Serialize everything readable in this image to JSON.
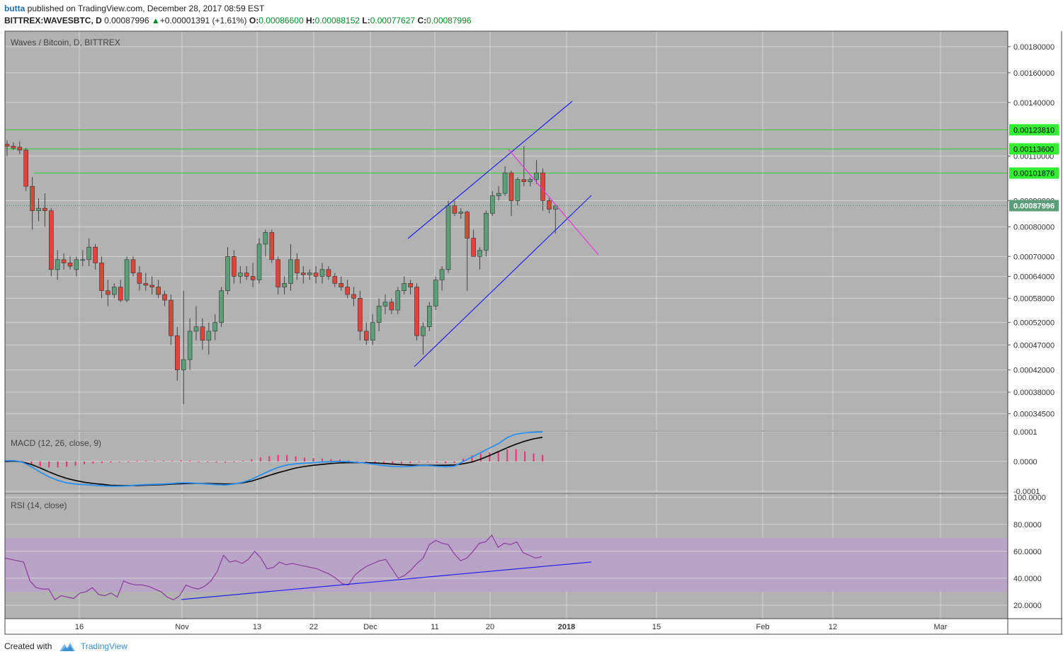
{
  "header": {
    "author": "butta",
    "published_text": "published on TradingView.com, December 28, 2017 08:59 EST",
    "symbol": "BITTREX:WAVESBTC, D",
    "last": "0.00087996",
    "change": "+0.00001391 (+1.61%)",
    "o_label": "O:",
    "o_value": "0.00086600",
    "h_label": "H:",
    "h_value": "0.00088152",
    "l_label": "L:",
    "l_value": "0.00077627",
    "c_label": "C:",
    "c_value": "0.00087996"
  },
  "footer": {
    "created_with": "Created with",
    "brand": "TradingView"
  },
  "colors": {
    "pane_bg": "#b2b2b2",
    "grid": "#d4d4d4",
    "up": "#5b9e78",
    "down": "#d8473a",
    "hline": "#2ecc2e",
    "trend": "#2222ee",
    "pink": "#ee33dd",
    "macd": "#2b8ff0",
    "signal": "#000000",
    "hist": "#e8327a",
    "rsi": "#8a3a9a",
    "rsi_band": "#b9a4c8"
  },
  "chart_data": [
    {
      "type": "candlestick",
      "title": "Waves / Bitcoin, D, BITTREX",
      "scale": "log",
      "ylim": [
        0.00032,
        0.00193
      ],
      "yticks": [
        "0.00180000",
        "0.00160000",
        "0.00140000",
        "0.00110000",
        "0.00090000",
        "0.00080000",
        "0.00070000",
        "0.00064000",
        "0.00058000",
        "0.00052000",
        "0.00047000",
        "0.00042000",
        "0.00038000",
        "0.00034500"
      ],
      "xticks": [
        "16",
        "Nov",
        "13",
        "22",
        "Dec",
        "11",
        "20",
        "2018",
        "15",
        "Feb",
        "12",
        "Mar"
      ],
      "horizontal_levels": [
        {
          "label": "0.00123810",
          "value": 0.0012381
        },
        {
          "label": "0.00113600",
          "value": 0.001136
        },
        {
          "label": "0.00101876",
          "value": 0.00101876
        }
      ],
      "last_price_label": "0.00087996",
      "candles": [
        {
          "o": 0.00116,
          "h": 0.00118,
          "l": 0.0011,
          "c": 0.00115
        },
        {
          "o": 0.00115,
          "h": 0.00117,
          "l": 0.00113,
          "c": 0.00114
        },
        {
          "o": 0.001145,
          "h": 0.001175,
          "l": 0.00111,
          "c": 0.00113
        },
        {
          "o": 0.00113,
          "h": 0.00114,
          "l": 0.00094,
          "c": 0.00096
        },
        {
          "o": 0.00096,
          "h": 0.001,
          "l": 0.00079,
          "c": 0.00086
        },
        {
          "o": 0.00086,
          "h": 0.00091,
          "l": 0.00082,
          "c": 0.00087
        },
        {
          "o": 0.00087,
          "h": 0.00093,
          "l": 0.0008,
          "c": 0.00086
        },
        {
          "o": 0.00086,
          "h": 0.00087,
          "l": 0.00064,
          "c": 0.00066
        },
        {
          "o": 0.00066,
          "h": 0.00072,
          "l": 0.00063,
          "c": 0.00069
        },
        {
          "o": 0.00069,
          "h": 0.00071,
          "l": 0.00066,
          "c": 0.00068
        },
        {
          "o": 0.00068,
          "h": 0.0007,
          "l": 0.00066,
          "c": 0.00067
        },
        {
          "o": 0.00066,
          "h": 0.0007,
          "l": 0.00064,
          "c": 0.00069
        },
        {
          "o": 0.00069,
          "h": 0.00072,
          "l": 0.00067,
          "c": 0.00069
        },
        {
          "o": 0.00069,
          "h": 0.00076,
          "l": 0.00067,
          "c": 0.00073
        },
        {
          "o": 0.00073,
          "h": 0.00074,
          "l": 0.00066,
          "c": 0.00068
        },
        {
          "o": 0.00068,
          "h": 0.0007,
          "l": 0.00058,
          "c": 0.0006
        },
        {
          "o": 0.0006,
          "h": 0.00063,
          "l": 0.00056,
          "c": 0.00059
        },
        {
          "o": 0.00059,
          "h": 0.00062,
          "l": 0.00058,
          "c": 0.00061
        },
        {
          "o": 0.00061,
          "h": 0.00063,
          "l": 0.00057,
          "c": 0.000575
        },
        {
          "o": 0.000575,
          "h": 0.0007,
          "l": 0.00057,
          "c": 0.00069
        },
        {
          "o": 0.00069,
          "h": 0.0007,
          "l": 0.00064,
          "c": 0.00065
        },
        {
          "o": 0.00065,
          "h": 0.00067,
          "l": 0.0006,
          "c": 0.00062
        },
        {
          "o": 0.00062,
          "h": 0.00065,
          "l": 0.0006,
          "c": 0.000615
        },
        {
          "o": 0.000615,
          "h": 0.00064,
          "l": 0.00059,
          "c": 0.00061
        },
        {
          "o": 0.00061,
          "h": 0.00063,
          "l": 0.00058,
          "c": 0.00059
        },
        {
          "o": 0.00059,
          "h": 0.0006,
          "l": 0.00056,
          "c": 0.000575
        },
        {
          "o": 0.000575,
          "h": 0.00059,
          "l": 0.00047,
          "c": 0.00049
        },
        {
          "o": 0.00049,
          "h": 0.00051,
          "l": 0.0004,
          "c": 0.00042
        },
        {
          "o": 0.00042,
          "h": 0.0006,
          "l": 0.00036,
          "c": 0.00044
        },
        {
          "o": 0.00044,
          "h": 0.00053,
          "l": 0.00042,
          "c": 0.0005
        },
        {
          "o": 0.0005,
          "h": 0.00056,
          "l": 0.00048,
          "c": 0.00051
        },
        {
          "o": 0.00051,
          "h": 0.00053,
          "l": 0.00046,
          "c": 0.00048
        },
        {
          "o": 0.00048,
          "h": 0.00052,
          "l": 0.00045,
          "c": 0.0005
        },
        {
          "o": 0.0005,
          "h": 0.00054,
          "l": 0.00048,
          "c": 0.00052
        },
        {
          "o": 0.00052,
          "h": 0.00061,
          "l": 0.00051,
          "c": 0.0006
        },
        {
          "o": 0.0006,
          "h": 0.00073,
          "l": 0.00059,
          "c": 0.0007
        },
        {
          "o": 0.0007,
          "h": 0.00072,
          "l": 0.00062,
          "c": 0.00064
        },
        {
          "o": 0.00064,
          "h": 0.00067,
          "l": 0.00062,
          "c": 0.00065
        },
        {
          "o": 0.00065,
          "h": 0.00067,
          "l": 0.00063,
          "c": 0.00064
        },
        {
          "o": 0.00064,
          "h": 0.00068,
          "l": 0.00061,
          "c": 0.00063
        },
        {
          "o": 0.00063,
          "h": 0.00076,
          "l": 0.00062,
          "c": 0.00074
        },
        {
          "o": 0.00074,
          "h": 0.00079,
          "l": 0.0007,
          "c": 0.00078
        },
        {
          "o": 0.00078,
          "h": 0.00079,
          "l": 0.00068,
          "c": 0.00069
        },
        {
          "o": 0.00069,
          "h": 0.0007,
          "l": 0.00059,
          "c": 0.00061
        },
        {
          "o": 0.00061,
          "h": 0.00064,
          "l": 0.00059,
          "c": 0.00062
        },
        {
          "o": 0.00062,
          "h": 0.00074,
          "l": 0.0006,
          "c": 0.00069
        },
        {
          "o": 0.00069,
          "h": 0.00071,
          "l": 0.00063,
          "c": 0.00065
        },
        {
          "o": 0.00065,
          "h": 0.00067,
          "l": 0.00062,
          "c": 0.000645
        },
        {
          "o": 0.000645,
          "h": 0.00066,
          "l": 0.00063,
          "c": 0.00065
        },
        {
          "o": 0.00065,
          "h": 0.00067,
          "l": 0.00062,
          "c": 0.00064
        },
        {
          "o": 0.00064,
          "h": 0.00068,
          "l": 0.00062,
          "c": 0.00066
        },
        {
          "o": 0.00066,
          "h": 0.00067,
          "l": 0.00063,
          "c": 0.00064
        },
        {
          "o": 0.00064,
          "h": 0.00065,
          "l": 0.00061,
          "c": 0.00062
        },
        {
          "o": 0.00062,
          "h": 0.00064,
          "l": 0.0006,
          "c": 0.00061
        },
        {
          "o": 0.00061,
          "h": 0.00063,
          "l": 0.00058,
          "c": 0.00059
        },
        {
          "o": 0.00059,
          "h": 0.00061,
          "l": 0.00056,
          "c": 0.00058
        },
        {
          "o": 0.00058,
          "h": 0.0006,
          "l": 0.00048,
          "c": 0.0005
        },
        {
          "o": 0.0005,
          "h": 0.00052,
          "l": 0.00047,
          "c": 0.00048
        },
        {
          "o": 0.00048,
          "h": 0.00054,
          "l": 0.00047,
          "c": 0.00052
        },
        {
          "o": 0.00052,
          "h": 0.00058,
          "l": 0.0005,
          "c": 0.00056
        },
        {
          "o": 0.00056,
          "h": 0.00059,
          "l": 0.00054,
          "c": 0.00057
        },
        {
          "o": 0.00057,
          "h": 0.00058,
          "l": 0.00054,
          "c": 0.00055
        },
        {
          "o": 0.00055,
          "h": 0.00061,
          "l": 0.00054,
          "c": 0.0006
        },
        {
          "o": 0.0006,
          "h": 0.00064,
          "l": 0.00059,
          "c": 0.00062
        },
        {
          "o": 0.00062,
          "h": 0.00063,
          "l": 0.00059,
          "c": 0.00061
        },
        {
          "o": 0.00061,
          "h": 0.00062,
          "l": 0.00048,
          "c": 0.00049
        },
        {
          "o": 0.00049,
          "h": 0.00052,
          "l": 0.00045,
          "c": 0.00051
        },
        {
          "o": 0.00051,
          "h": 0.00057,
          "l": 0.0005,
          "c": 0.00056
        },
        {
          "o": 0.00056,
          "h": 0.00064,
          "l": 0.00055,
          "c": 0.00063
        },
        {
          "o": 0.00063,
          "h": 0.00067,
          "l": 0.0006,
          "c": 0.00066
        },
        {
          "o": 0.00066,
          "h": 0.0009,
          "l": 0.00065,
          "c": 0.00088
        },
        {
          "o": 0.00088,
          "h": 0.0009,
          "l": 0.00084,
          "c": 0.00085
        },
        {
          "o": 0.00085,
          "h": 0.00087,
          "l": 0.00083,
          "c": 0.000855
        },
        {
          "o": 0.000855,
          "h": 0.00086,
          "l": 0.0006,
          "c": 0.00076
        },
        {
          "o": 0.00076,
          "h": 0.00079,
          "l": 0.0007,
          "c": 0.0007
        },
        {
          "o": 0.0007,
          "h": 0.00073,
          "l": 0.00066,
          "c": 0.00072
        },
        {
          "o": 0.00072,
          "h": 0.00086,
          "l": 0.0007,
          "c": 0.00085
        },
        {
          "o": 0.00085,
          "h": 0.00094,
          "l": 0.00084,
          "c": 0.00092
        },
        {
          "o": 0.00092,
          "h": 0.00096,
          "l": 0.0009,
          "c": 0.00093
        },
        {
          "o": 0.00093,
          "h": 0.00105,
          "l": 0.00092,
          "c": 0.00102
        },
        {
          "o": 0.00102,
          "h": 0.00103,
          "l": 0.00084,
          "c": 0.0009
        },
        {
          "o": 0.0009,
          "h": 0.001,
          "l": 0.00088,
          "c": 0.00099
        },
        {
          "o": 0.00099,
          "h": 0.00115,
          "l": 0.00096,
          "c": 0.00098
        },
        {
          "o": 0.00098,
          "h": 0.001,
          "l": 0.00096,
          "c": 0.00099
        },
        {
          "o": 0.00099,
          "h": 0.00108,
          "l": 0.00097,
          "c": 0.00102
        },
        {
          "o": 0.00102,
          "h": 0.00104,
          "l": 0.00086,
          "c": 0.0009
        },
        {
          "o": 0.0009,
          "h": 0.00091,
          "l": 0.00085,
          "c": 0.000866
        },
        {
          "o": 0.000866,
          "h": 0.000882,
          "l": 0.000776,
          "c": 0.00088
        }
      ]
    },
    {
      "type": "line",
      "title": "MACD (12, 26, close, 9)",
      "ylim": [
        -0.000105,
        0.000102
      ],
      "yticks": [
        "0.0001",
        "0.0000",
        "-0.0001"
      ],
      "series": [
        {
          "values": [
            2e-06,
            3e-06,
            -3e-06,
            -1.8e-05,
            -3.6e-05,
            -5.2e-05,
            -6.4e-05,
            -7.2e-05,
            -7.6e-05,
            -7.8e-05,
            -8e-05,
            -8.2e-05,
            -8.3e-05,
            -8.3e-05,
            -8.2e-05,
            -7.9e-05,
            -7.8e-05,
            -7.7e-05,
            -7.6e-05,
            -7.4e-05,
            -7.2e-05,
            -7.2e-05,
            -7.4e-05,
            -7.6e-05,
            -7.8e-05,
            -7.9e-05,
            -7.6e-05,
            -7e-05,
            -6e-05,
            -4.6e-05,
            -3.2e-05,
            -2e-05,
            -1.2e-05,
            -8e-06,
            -6e-06,
            -4e-06,
            -2e-06,
            -1e-06,
            -0.0,
            -1e-06,
            -3e-06,
            -6e-06,
            -1e-05,
            -1.4e-05,
            -1.7e-05,
            -1.8e-05,
            -1.7e-05,
            -1.4e-05,
            -1.4e-05,
            -1.6e-05,
            -1.8e-05,
            -1.6e-05,
            0.0,
            1.5e-05,
            3e-05,
            4.5e-05,
            6e-05,
            8e-05,
            9.2e-05,
            9.6e-05,
            9.8e-05,
            9.9e-05
          ]
        },
        {
          "values": [
            0.0,
            1e-06,
            -2e-06,
            -1e-05,
            -2.2e-05,
            -3.5e-05,
            -4.7e-05,
            -5.7e-05,
            -6.4e-05,
            -7e-05,
            -7.4e-05,
            -7.7e-05,
            -8e-05,
            -8.1e-05,
            -8.1e-05,
            -8.1e-05,
            -8e-05,
            -7.9e-05,
            -7.8e-05,
            -7.6e-05,
            -7.5e-05,
            -7.4e-05,
            -7.4e-05,
            -7.4e-05,
            -7.5e-05,
            -7.6e-05,
            -7.5e-05,
            -7.2e-05,
            -6.6e-05,
            -5.7e-05,
            -4.7e-05,
            -3.8e-05,
            -3e-05,
            -2.2e-05,
            -1.7e-05,
            -1.3e-05,
            -1e-05,
            -7e-06,
            -5e-06,
            -4e-06,
            -4e-06,
            -4e-06,
            -5e-06,
            -7e-06,
            -9e-06,
            -1.1e-05,
            -1.2e-05,
            -1.3e-05,
            -1.3e-05,
            -1.3e-05,
            -1.3e-05,
            -1.2e-05,
            -8e-06,
            -2e-06,
            8e-06,
            2e-05,
            3.3e-05,
            4.6e-05,
            5.8e-05,
            6.8e-05,
            7.6e-05,
            8.1e-05
          ]
        }
      ],
      "histogram": [
        2,
        2,
        -1,
        -8,
        -14,
        -17,
        -17,
        -15,
        -12,
        -8,
        -6,
        -5,
        -3,
        -2,
        -1,
        2,
        2,
        2,
        2,
        2,
        3,
        2,
        0,
        -2,
        -3,
        -3,
        -1,
        2,
        6,
        11,
        15,
        18,
        18,
        14,
        11,
        9,
        8,
        6,
        5,
        3,
        1,
        -2,
        -5,
        -7,
        -8,
        -7,
        -5,
        -1,
        -1,
        -3,
        -5,
        -4,
        8,
        17,
        22,
        25,
        27,
        34,
        34,
        28,
        22,
        18
      ]
    },
    {
      "type": "line",
      "title": "RSI (14, close)",
      "ylim": [
        10,
        103
      ],
      "yticks": [
        "100.0000",
        "80.0000",
        "60.0000",
        "40.0000",
        "20.0000"
      ],
      "band": [
        30,
        70
      ],
      "series": [
        {
          "values": [
            55,
            54,
            53,
            52,
            38,
            33,
            32,
            32,
            24,
            27,
            26,
            25,
            29,
            30,
            33,
            28,
            27,
            29,
            26,
            38,
            36,
            35,
            35,
            34,
            32,
            30,
            26,
            24,
            27,
            35,
            33,
            32,
            34,
            38,
            45,
            57,
            52,
            53,
            51,
            54,
            60,
            55,
            47,
            48,
            52,
            50,
            51,
            50,
            49,
            48,
            47,
            45,
            43,
            40,
            36,
            35,
            42,
            46,
            49,
            51,
            53,
            54,
            47,
            40,
            42,
            46,
            51,
            55,
            65,
            68,
            66,
            65,
            58,
            53,
            55,
            60,
            66,
            67,
            72,
            63,
            66,
            65,
            67,
            59,
            57,
            55,
            56
          ]
        }
      ]
    }
  ]
}
